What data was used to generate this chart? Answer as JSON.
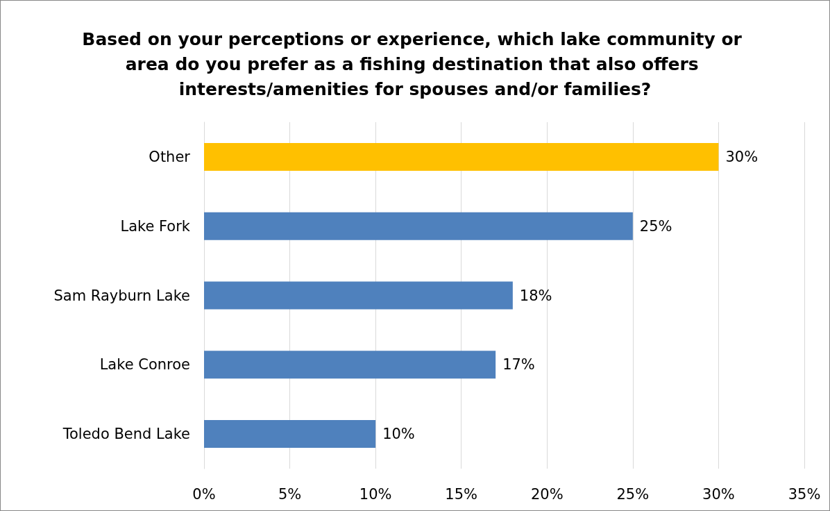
{
  "chart_data": {
    "type": "bar",
    "orientation": "horizontal",
    "title": "Based on your perceptions or experience, which lake community or area do you prefer as a fishing destination that also offers interests/amenities for spouses and/or families?",
    "categories": [
      "Other",
      "Lake Fork",
      "Sam Rayburn Lake",
      "Lake Conroe",
      "Toledo Bend Lake"
    ],
    "values": [
      30,
      25,
      18,
      17,
      10
    ],
    "colors": [
      "#ffc000",
      "#4f81bd",
      "#4f81bd",
      "#4f81bd",
      "#4f81bd"
    ],
    "value_labels": [
      "30%",
      "25%",
      "18%",
      "17%",
      "10%"
    ],
    "xlim": [
      0,
      35
    ],
    "xticks": [
      {
        "value": 0,
        "label": "0%"
      },
      {
        "value": 5,
        "label": "5%"
      },
      {
        "value": 10,
        "label": "10%"
      },
      {
        "value": 15,
        "label": "15%"
      },
      {
        "value": 20,
        "label": "20%"
      },
      {
        "value": 25,
        "label": "25%"
      },
      {
        "value": 30,
        "label": "30%"
      },
      {
        "value": 35,
        "label": "35%"
      }
    ],
    "grid": "x"
  }
}
